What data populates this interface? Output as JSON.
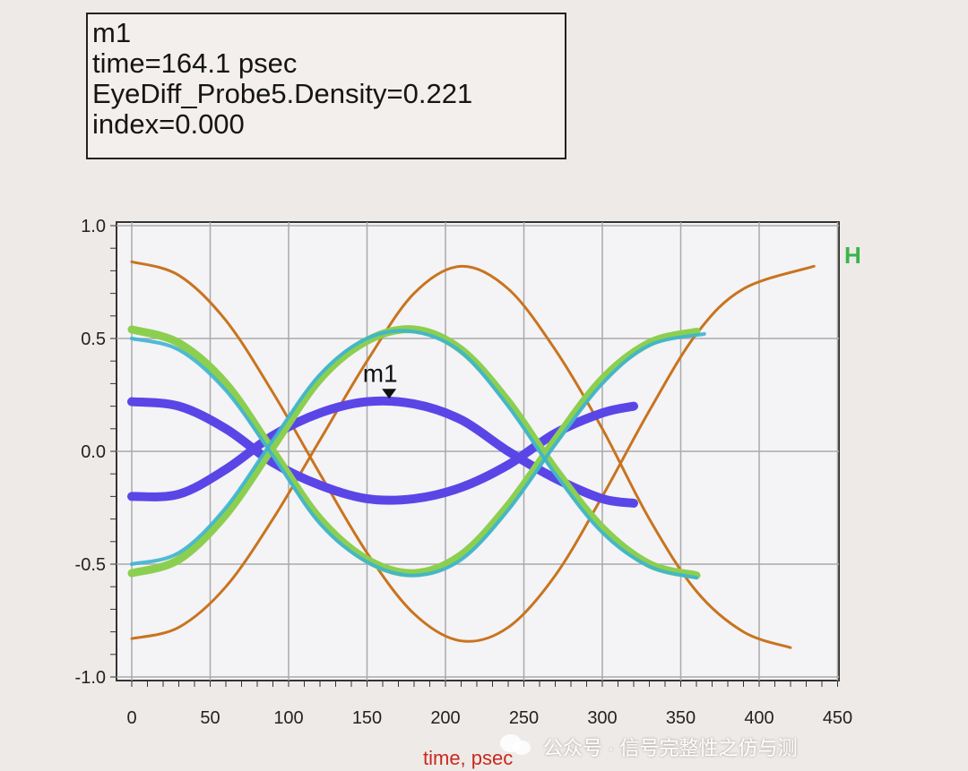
{
  "marker_box": {
    "name": "m1",
    "time_line": "time=164.1 psec",
    "density_line": "EyeDiff_Probe5.Density=0.221",
    "index_line": "index=0.000"
  },
  "chart_data": {
    "type": "line",
    "title": "",
    "xlabel": "time, psec",
    "ylabel": "",
    "xlim": [
      0,
      450
    ],
    "ylim": [
      -1.0,
      1.0
    ],
    "x_ticks": [
      "0",
      "50",
      "100",
      "150",
      "200",
      "250",
      "300",
      "350",
      "400",
      "450"
    ],
    "y_ticks": [
      "1.0",
      "0.5",
      "0.0",
      "-0.5",
      "-1.0"
    ],
    "grid": true,
    "corner_label": "H",
    "marker": {
      "label": "m1",
      "x": 164.1,
      "y": 0.221
    },
    "series": [
      {
        "color": "#c8741e",
        "x": [
          0,
          30,
          60,
          90,
          120,
          150,
          180,
          210,
          240,
          270,
          300,
          330,
          360,
          390,
          420
        ],
        "y": [
          -0.83,
          -0.78,
          -0.6,
          -0.3,
          0.05,
          0.4,
          0.7,
          0.82,
          0.72,
          0.45,
          0.1,
          -0.3,
          -0.62,
          -0.8,
          -0.87
        ]
      },
      {
        "color": "#c8741e",
        "x": [
          0,
          30,
          60,
          90,
          120,
          150,
          180,
          210,
          240,
          270,
          300,
          330,
          360,
          390,
          435
        ],
        "y": [
          0.84,
          0.78,
          0.58,
          0.26,
          -0.1,
          -0.45,
          -0.72,
          -0.84,
          -0.78,
          -0.55,
          -0.2,
          0.18,
          0.52,
          0.72,
          0.82
        ]
      },
      {
        "color": "#5a46e6",
        "x": [
          0,
          30,
          60,
          90,
          120,
          150,
          180,
          210,
          240,
          270,
          300,
          320
        ],
        "y": [
          0.22,
          0.2,
          0.1,
          -0.05,
          -0.15,
          -0.21,
          -0.21,
          -0.16,
          -0.06,
          0.08,
          0.17,
          0.2
        ]
      },
      {
        "color": "#5a46e6",
        "x": [
          0,
          30,
          60,
          90,
          120,
          150,
          180,
          210,
          240,
          270,
          300,
          320
        ],
        "y": [
          -0.2,
          -0.19,
          -0.08,
          0.07,
          0.17,
          0.22,
          0.21,
          0.14,
          0.0,
          -0.12,
          -0.21,
          -0.23
        ]
      },
      {
        "color": "#8ccf50",
        "x": [
          0,
          30,
          60,
          90,
          120,
          150,
          180,
          210,
          240,
          270,
          300,
          330,
          360
        ],
        "y": [
          0.54,
          0.48,
          0.3,
          0.0,
          -0.3,
          -0.48,
          -0.54,
          -0.46,
          -0.24,
          0.05,
          0.32,
          0.48,
          0.53
        ]
      },
      {
        "color": "#8ccf50",
        "x": [
          0,
          30,
          60,
          90,
          120,
          150,
          180,
          210,
          240,
          270,
          300,
          330,
          360
        ],
        "y": [
          -0.54,
          -0.48,
          -0.28,
          0.02,
          0.32,
          0.49,
          0.54,
          0.45,
          0.22,
          -0.08,
          -0.34,
          -0.5,
          -0.55
        ]
      },
      {
        "color": "#3cb4d2",
        "x": [
          0,
          30,
          60,
          90,
          120,
          150,
          180,
          210,
          240,
          270,
          300,
          330,
          365
        ],
        "y": [
          0.5,
          0.45,
          0.27,
          -0.02,
          -0.32,
          -0.49,
          -0.55,
          -0.48,
          -0.26,
          0.03,
          0.3,
          0.47,
          0.52
        ]
      },
      {
        "color": "#3cb4d2",
        "x": [
          0,
          30,
          60,
          90,
          120,
          150,
          180,
          210,
          240,
          270,
          300,
          330,
          360
        ],
        "y": [
          -0.5,
          -0.45,
          -0.25,
          0.05,
          0.34,
          0.5,
          0.53,
          0.44,
          0.2,
          -0.1,
          -0.36,
          -0.51,
          -0.56
        ]
      }
    ]
  },
  "watermark": "公众号 · 信号完整性之仿与测"
}
